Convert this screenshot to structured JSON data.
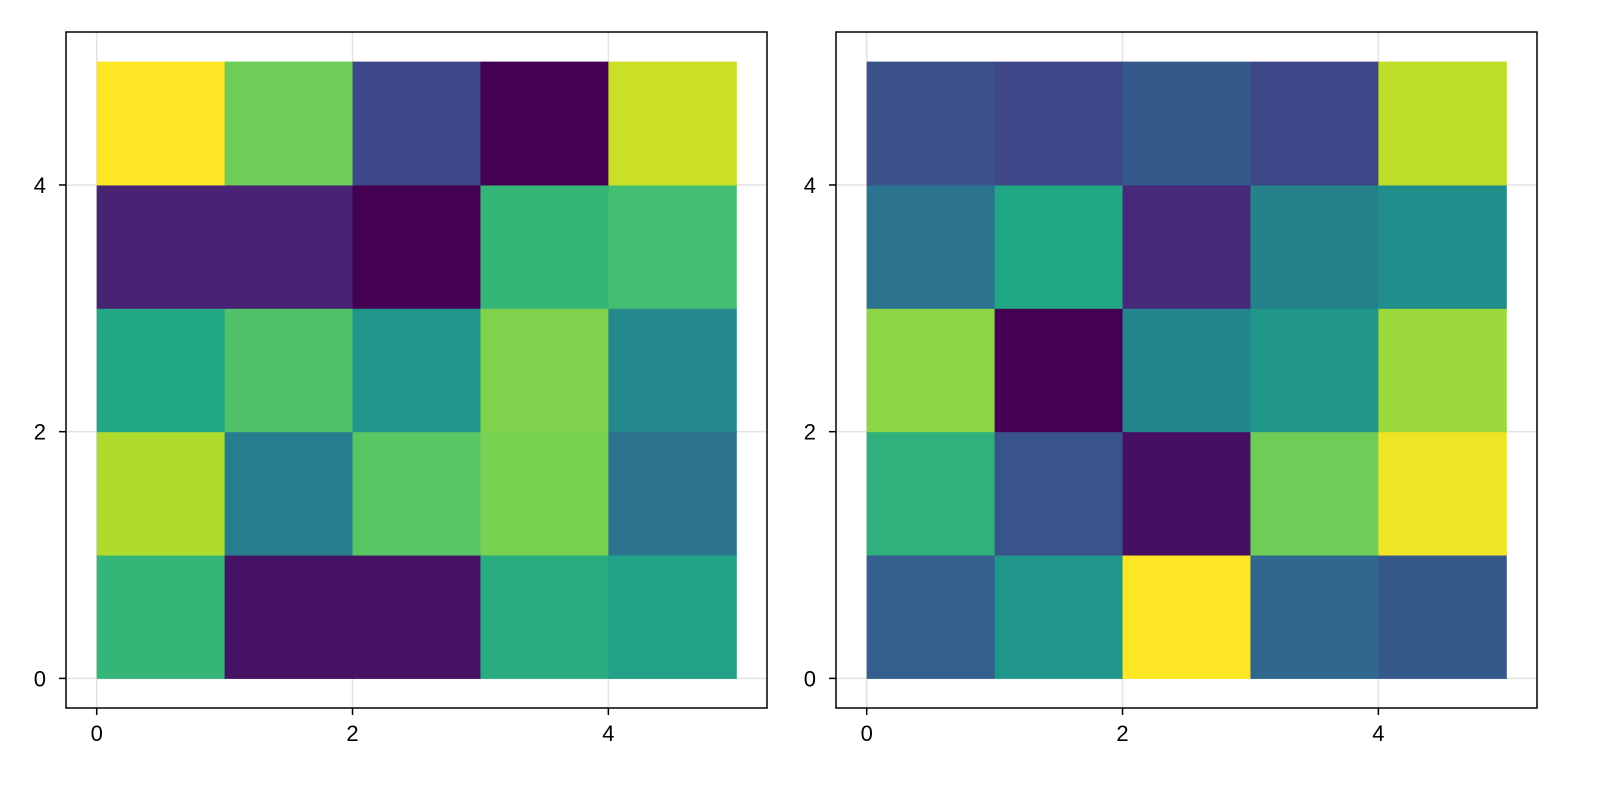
{
  "chart_data": [
    {
      "type": "heatmap",
      "title": "",
      "xlabel": "",
      "ylabel": "",
      "xlim": [
        -0.24,
        5.24
      ],
      "ylim": [
        -0.24,
        5.24
      ],
      "xticks": [
        "0",
        "2",
        "4"
      ],
      "yticks": [
        "0",
        "2",
        "4"
      ],
      "grid": true,
      "colormap": "viridis",
      "cell_edges_x": [
        0,
        1,
        2,
        3,
        4,
        5
      ],
      "cell_edges_y": [
        0,
        1,
        2,
        3,
        4,
        5
      ],
      "values_rows_bottom_to_top": [
        [
          0.66,
          0.05,
          0.05,
          0.62,
          0.58
        ],
        [
          0.88,
          0.42,
          0.74,
          0.8,
          0.38
        ],
        [
          0.6,
          0.72,
          0.52,
          0.81,
          0.47
        ],
        [
          0.1,
          0.1,
          0.0,
          0.66,
          0.7
        ],
        [
          1.0,
          0.78,
          0.22,
          0.0,
          0.92
        ]
      ]
    },
    {
      "type": "heatmap",
      "title": "",
      "xlabel": "",
      "ylabel": "",
      "xlim": [
        -0.24,
        5.24
      ],
      "ylim": [
        -0.24,
        5.24
      ],
      "xticks": [
        "0",
        "2",
        "4"
      ],
      "yticks": [
        "0",
        "2",
        "4"
      ],
      "grid": true,
      "colormap": "viridis",
      "cell_edges_x": [
        0,
        1,
        2,
        3,
        4,
        5
      ],
      "cell_edges_y": [
        0,
        1,
        2,
        3,
        4,
        5
      ],
      "values_rows_bottom_to_top": [
        [
          0.3,
          0.52,
          1.0,
          0.34,
          0.28
        ],
        [
          0.64,
          0.26,
          0.04,
          0.78,
          0.98
        ],
        [
          0.83,
          0.0,
          0.46,
          0.53,
          0.85
        ],
        [
          0.38,
          0.6,
          0.12,
          0.44,
          0.49
        ],
        [
          0.25,
          0.22,
          0.28,
          0.21,
          0.9
        ]
      ]
    }
  ]
}
